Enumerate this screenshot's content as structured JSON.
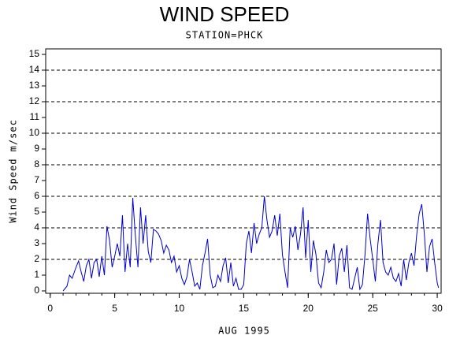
{
  "chart_data": {
    "type": "line",
    "title": "WIND SPEED",
    "subtitle": "STATION=PHCK",
    "xlabel": "AUG 1995",
    "ylabel": "Wind Speed m/sec",
    "xlim": [
      -0.35,
      30.3
    ],
    "ylim": [
      -0.15,
      15.35
    ],
    "xticks": [
      0,
      5,
      10,
      15,
      20,
      25,
      30
    ],
    "xminorticks": [
      0,
      1,
      2,
      3,
      4,
      5,
      6,
      7,
      8,
      9,
      10,
      11,
      12,
      13,
      14,
      15,
      16,
      17,
      18,
      19,
      20,
      21,
      22,
      23,
      24,
      25,
      26,
      27,
      28,
      29,
      30
    ],
    "yticks": [
      0,
      1,
      2,
      3,
      4,
      5,
      6,
      7,
      8,
      9,
      10,
      11,
      12,
      13,
      14,
      15
    ],
    "grid_lines": [
      2,
      4,
      6,
      8,
      10,
      12,
      14
    ],
    "series": [
      {
        "color": "#0000cc",
        "x": [
          1.0,
          1.3,
          1.5,
          1.7,
          2.0,
          2.2,
          2.4,
          2.6,
          2.8,
          3.0,
          3.2,
          3.4,
          3.6,
          3.8,
          4.0,
          4.2,
          4.4,
          4.6,
          4.8,
          5.0,
          5.2,
          5.4,
          5.6,
          5.8,
          6.0,
          6.2,
          6.4,
          6.6,
          6.8,
          7.0,
          7.2,
          7.4,
          7.6,
          7.8,
          8.0,
          8.2,
          8.4,
          8.6,
          8.8,
          9.0,
          9.2,
          9.4,
          9.6,
          9.8,
          10.0,
          10.2,
          10.4,
          10.6,
          10.8,
          11.0,
          11.2,
          11.4,
          11.6,
          11.8,
          12.0,
          12.2,
          12.4,
          12.6,
          12.8,
          13.0,
          13.2,
          13.4,
          13.6,
          13.8,
          14.0,
          14.2,
          14.4,
          14.6,
          14.8,
          15.0,
          15.2,
          15.4,
          15.6,
          15.8,
          16.0,
          16.2,
          16.4,
          16.6,
          16.8,
          17.0,
          17.2,
          17.4,
          17.6,
          17.8,
          18.0,
          18.2,
          18.4,
          18.6,
          18.8,
          19.0,
          19.2,
          19.4,
          19.6,
          19.8,
          20.0,
          20.2,
          20.4,
          20.6,
          20.8,
          21.0,
          21.2,
          21.4,
          21.6,
          21.8,
          22.0,
          22.2,
          22.4,
          22.6,
          22.8,
          23.0,
          23.2,
          23.4,
          23.6,
          23.8,
          24.0,
          24.2,
          24.4,
          24.6,
          24.8,
          25.0,
          25.2,
          25.4,
          25.6,
          25.8,
          26.0,
          26.2,
          26.4,
          26.6,
          26.8,
          27.0,
          27.2,
          27.4,
          27.6,
          27.8,
          28.0,
          28.2,
          28.4,
          28.6,
          28.8,
          29.0,
          29.2,
          29.4,
          29.6,
          29.8,
          30.0,
          30.1
        ],
        "values": [
          0,
          0.3,
          1.0,
          0.8,
          1.5,
          1.9,
          1.2,
          0.6,
          1.6,
          2.0,
          0.8,
          1.8,
          2.0,
          0.9,
          2.2,
          1.0,
          4.1,
          3.2,
          1.5,
          2.2,
          3.0,
          2.2,
          4.8,
          1.2,
          3.0,
          1.5,
          5.9,
          3.5,
          1.5,
          5.3,
          3.0,
          4.8,
          2.5,
          1.8,
          3.9,
          3.8,
          3.6,
          3.2,
          2.4,
          2.9,
          2.6,
          1.8,
          2.2,
          1.2,
          1.6,
          0.8,
          0.4,
          0.9,
          2.0,
          1.2,
          0.3,
          0.5,
          0.1,
          1.6,
          2.4,
          3.3,
          1.0,
          0.2,
          0.3,
          1.0,
          0.6,
          1.6,
          2.1,
          0.5,
          1.8,
          0.3,
          0.8,
          0.1,
          0.1,
          0.4,
          3.0,
          3.8,
          2.4,
          4.3,
          3.0,
          3.6,
          4.0,
          6.0,
          4.5,
          3.4,
          3.8,
          4.8,
          3.5,
          4.9,
          2.3,
          1.2,
          0.2,
          4.0,
          3.4,
          4.1,
          2.6,
          3.6,
          5.3,
          2.1,
          4.5,
          1.2,
          3.2,
          2.3,
          0.5,
          0.2,
          1.2,
          2.6,
          1.8,
          2.0,
          3.0,
          0.4,
          2.2,
          2.7,
          1.2,
          2.9,
          0.2,
          0.1,
          0.8,
          1.5,
          0.1,
          0.4,
          2.3,
          4.9,
          3.3,
          2.0,
          0.6,
          3.0,
          4.5,
          1.8,
          1.2,
          1.0,
          1.5,
          0.8,
          0.6,
          1.1,
          0.3,
          2.0,
          0.7,
          1.8,
          2.4,
          1.6,
          3.5,
          4.9,
          5.5,
          3.6,
          1.2,
          2.8,
          3.3,
          1.8,
          0.5,
          0.2
        ]
      }
    ]
  }
}
